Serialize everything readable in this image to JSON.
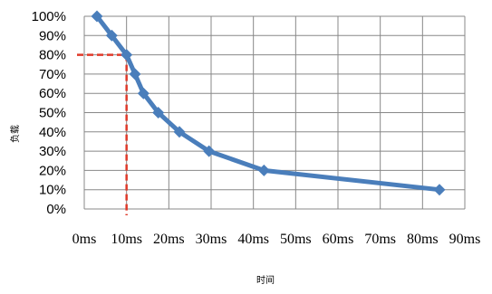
{
  "chart_data": {
    "type": "line",
    "xlabel": "时间",
    "ylabel": "负载",
    "x_ticks": [
      "0ms",
      "10ms",
      "20ms",
      "30ms",
      "40ms",
      "50ms",
      "60ms",
      "70ms",
      "80ms",
      "90ms"
    ],
    "y_ticks": [
      "0%",
      "10%",
      "20%",
      "30%",
      "40%",
      "50%",
      "60%",
      "70%",
      "80%",
      "90%",
      "100%"
    ],
    "xlim": [
      0,
      90
    ],
    "ylim": [
      0,
      100
    ],
    "grid": true,
    "series": [
      {
        "x": [
          3,
          6.5,
          10,
          12,
          14,
          17.5,
          22.5,
          29.5,
          42.5,
          84
        ],
        "y": [
          100,
          90,
          80,
          70,
          60,
          50,
          40,
          30,
          20,
          10
        ]
      }
    ],
    "reference_point": {
      "x": 10,
      "y": 80
    },
    "colors": {
      "series": "#4a7ebb",
      "reference": "#e03a2a",
      "grid": "#888888"
    }
  }
}
